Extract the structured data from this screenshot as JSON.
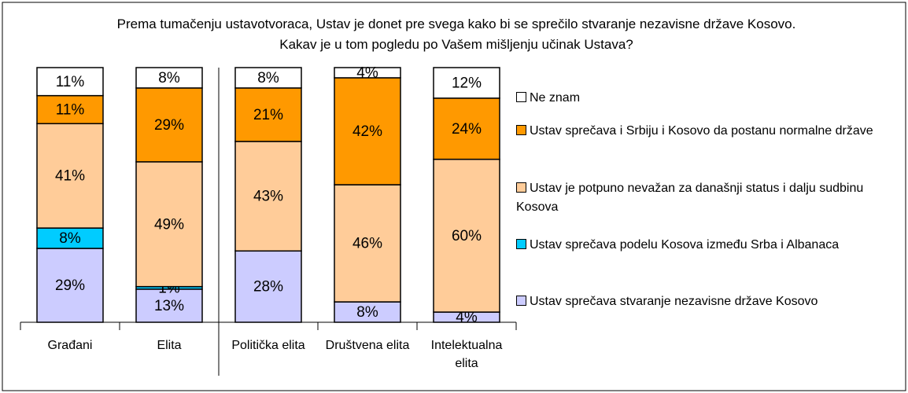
{
  "chart_data": {
    "type": "stacked_bar",
    "title": "Prema tumačenju ustavotvoraca, Ustav je donet pre svega kako bi se sprečilo stvaranje nezavisne države Kosovo. Kakav je u tom pogledu po Vašem mišljenju učinak Ustava?",
    "categories": [
      "Građani",
      "Elita",
      "Politička elita",
      "Društvena elita",
      "Intelektualna elita"
    ],
    "ylim": [
      0,
      100
    ],
    "series": [
      {
        "name": "Ustav sprečava stvaranje nezavisne države Kosovo",
        "color": "#ccccff",
        "values": [
          29,
          13,
          28,
          8,
          4
        ],
        "value_labels": [
          "29%",
          "13%",
          "28%",
          "8%",
          "4%"
        ]
      },
      {
        "name": "Ustav sprečava podelu Kosova između Srba i Albanaca",
        "color": "#00ccff",
        "values": [
          8,
          1,
          null,
          null,
          null
        ],
        "value_labels": [
          "8%",
          "1%",
          null,
          null,
          null
        ]
      },
      {
        "name": "Ustav je potpuno nevažan za današnji status i dalju sudbinu Kosova",
        "color": "#ffcc99",
        "values": [
          41,
          49,
          43,
          46,
          60
        ],
        "value_labels": [
          "41%",
          "49%",
          "43%",
          "46%",
          "60%"
        ]
      },
      {
        "name": "Ustav sprečava i Srbiju i Kosovo da postanu normalne države",
        "color": "#ff9900",
        "values": [
          11,
          29,
          21,
          42,
          24
        ],
        "value_labels": [
          "11%",
          "29%",
          "21%",
          "42%",
          "24%"
        ]
      },
      {
        "name": "Ne znam",
        "color": "#ffffff",
        "values": [
          11,
          8,
          8,
          4,
          12
        ],
        "value_labels": [
          "11%",
          "8%",
          "8%",
          "4%",
          "12%"
        ]
      }
    ]
  }
}
